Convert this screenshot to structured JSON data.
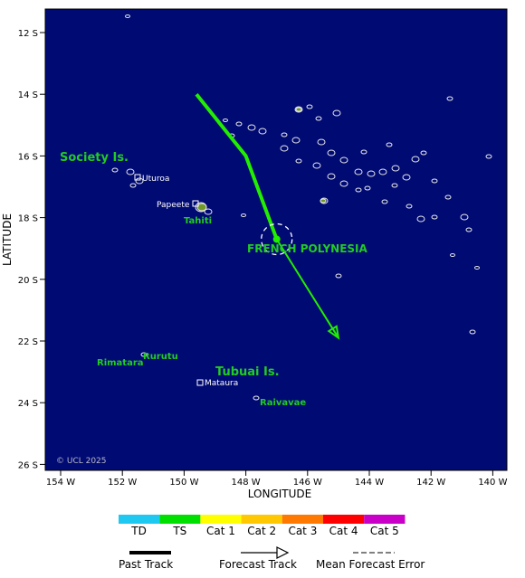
{
  "map": {
    "background": "#000a73",
    "axes": {
      "xlabel": "LONGITUDE",
      "ylabel": "LATITUDE",
      "lon_ticks": [
        "154 W",
        "152 W",
        "150 W",
        "148 W",
        "146 W",
        "144 W",
        "142 W",
        "140 W"
      ],
      "lat_ticks": [
        "12 S",
        "14 S",
        "16 S",
        "18 S",
        "20 S",
        "22 S",
        "24 S",
        "26 S"
      ]
    },
    "region_labels": [
      "Society Is.",
      "FRENCH POLYNESIA",
      "Tubuai Is."
    ],
    "island_labels": [
      "Tahiti",
      "Rurutu",
      "Rimatara",
      "Raivavae"
    ],
    "places": [
      "Uturoa",
      "Papeete",
      "Mataura"
    ],
    "copyright": "© UCL 2025"
  },
  "track": {
    "past_color": "#22ee00",
    "forecast_color": "#22ee00",
    "past_points": [
      [
        -149.6,
        14.0
      ],
      [
        -148.0,
        16.0
      ],
      [
        -147.0,
        18.7
      ]
    ],
    "forecast_points": [
      [
        -147.0,
        18.7
      ],
      [
        -145.0,
        21.9
      ]
    ],
    "current_position": [
      -147.0,
      18.7
    ],
    "intensity": "TS"
  },
  "legend": {
    "categories": [
      {
        "label": "TD",
        "color": "#1ec8f0"
      },
      {
        "label": "TS",
        "color": "#00e000"
      },
      {
        "label": "Cat 1",
        "color": "#ffff00"
      },
      {
        "label": "Cat 2",
        "color": "#ffc800"
      },
      {
        "label": "Cat 3",
        "color": "#ff7800"
      },
      {
        "label": "Cat 4",
        "color": "#ff0000"
      },
      {
        "label": "Cat 5",
        "color": "#c800c8"
      }
    ],
    "past_track_label": "Past Track",
    "forecast_track_label": "Forecast Track",
    "error_label": "Mean Forecast Error"
  }
}
